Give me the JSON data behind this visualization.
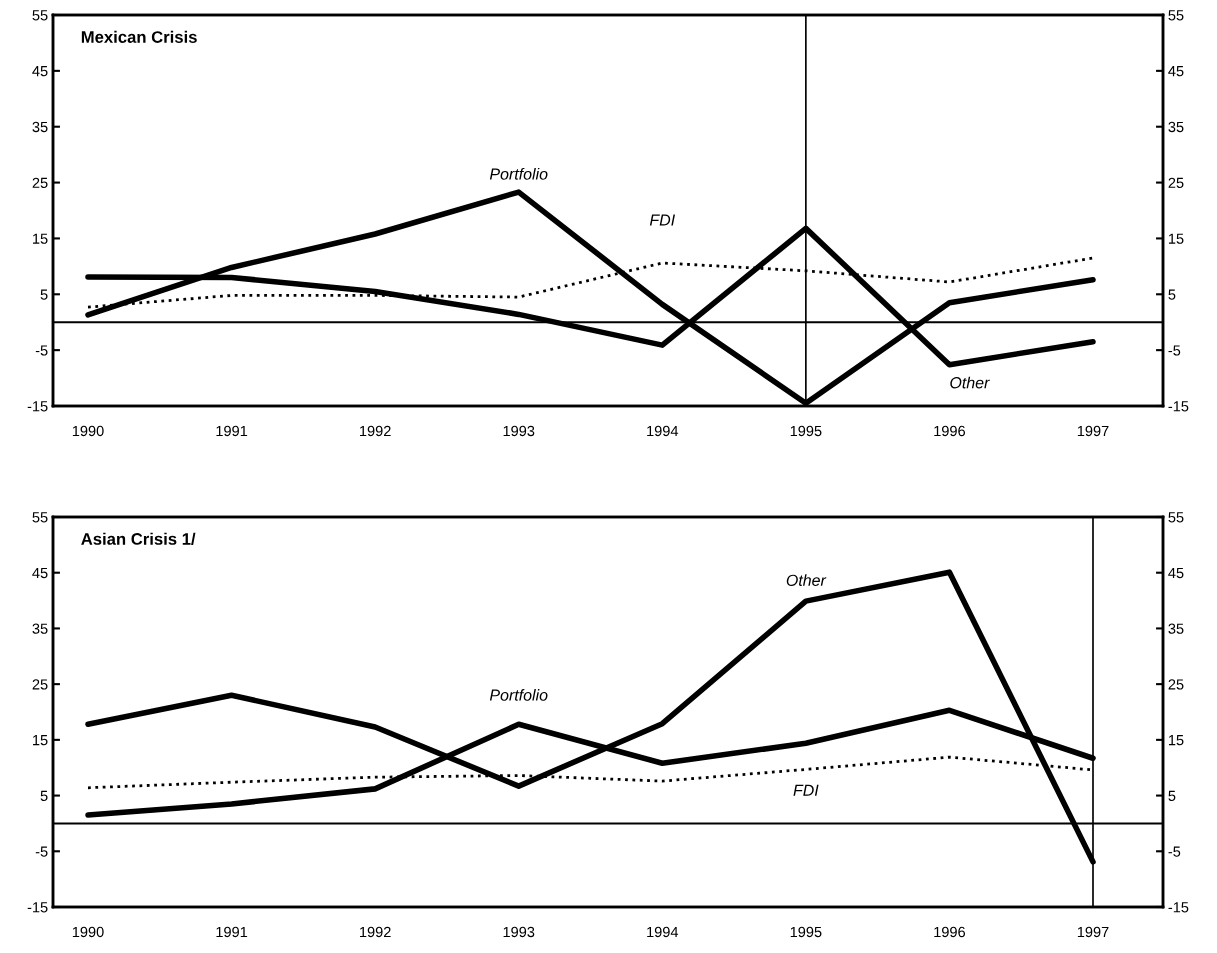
{
  "chart_data": [
    {
      "type": "line",
      "title": "Mexican Crisis",
      "categories": [
        "1990",
        "1991",
        "1992",
        "1993",
        "1994",
        "1995",
        "1996",
        "1997"
      ],
      "series": [
        {
          "name": "Portfolio",
          "color": "#000000",
          "line_style": "solid",
          "values": [
            1.3,
            9.8,
            15.8,
            23.3,
            3.2,
            -14.5,
            3.5,
            7.6
          ]
        },
        {
          "name": "Other",
          "color": "#000000",
          "line_style": "solid",
          "values": [
            8.1,
            8.0,
            5.5,
            1.4,
            -4.1,
            16.8,
            -7.6,
            -3.5
          ]
        },
        {
          "name": "FDI",
          "color": "#000000",
          "line_style": "dotted",
          "values": [
            2.7,
            4.8,
            4.8,
            4.5,
            10.6,
            9.2,
            7.2,
            11.5
          ]
        }
      ],
      "ylim": [
        -15,
        55
      ],
      "yticks": [
        -15,
        -5,
        5,
        15,
        25,
        35,
        45,
        55
      ],
      "y2lim": [
        -15,
        55
      ],
      "y2ticks": [
        -15,
        -5,
        5,
        15,
        25,
        35,
        45,
        55
      ],
      "ref_lines": [
        {
          "axis": "y",
          "value": 0,
          "label": null,
          "color": "#000000"
        },
        {
          "axis": "x",
          "value": "1995",
          "label": null,
          "color": "#000000"
        }
      ],
      "grid": false,
      "legend": false,
      "marker": "none"
    },
    {
      "type": "line",
      "title": "Asian Crisis 1/",
      "categories": [
        "1990",
        "1991",
        "1992",
        "1993",
        "1994",
        "1995",
        "1996",
        "1997"
      ],
      "series": [
        {
          "name": "Portfolio",
          "color": "#000000",
          "line_style": "solid",
          "values": [
            1.5,
            3.5,
            6.2,
            17.8,
            10.8,
            14.4,
            20.3,
            11.7
          ]
        },
        {
          "name": "Other",
          "color": "#000000",
          "line_style": "solid",
          "values": [
            17.8,
            23.0,
            17.3,
            6.7,
            17.9,
            39.9,
            45.1,
            -6.9
          ]
        },
        {
          "name": "FDI",
          "color": "#000000",
          "line_style": "dotted",
          "values": [
            6.4,
            7.4,
            8.3,
            8.6,
            7.6,
            9.7,
            11.9,
            9.6
          ]
        }
      ],
      "ylim": [
        -15,
        55
      ],
      "yticks": [
        -15,
        -5,
        5,
        15,
        25,
        35,
        45,
        55
      ],
      "y2lim": [
        -15,
        55
      ],
      "y2ticks": [
        -15,
        -5,
        5,
        15,
        25,
        35,
        45,
        55
      ],
      "ref_lines": [
        {
          "axis": "y",
          "value": 0,
          "label": null,
          "color": "#000000"
        },
        {
          "axis": "x",
          "value": "1997",
          "label": null,
          "color": "#000000"
        }
      ],
      "grid": false,
      "legend": false,
      "marker": "none"
    }
  ]
}
